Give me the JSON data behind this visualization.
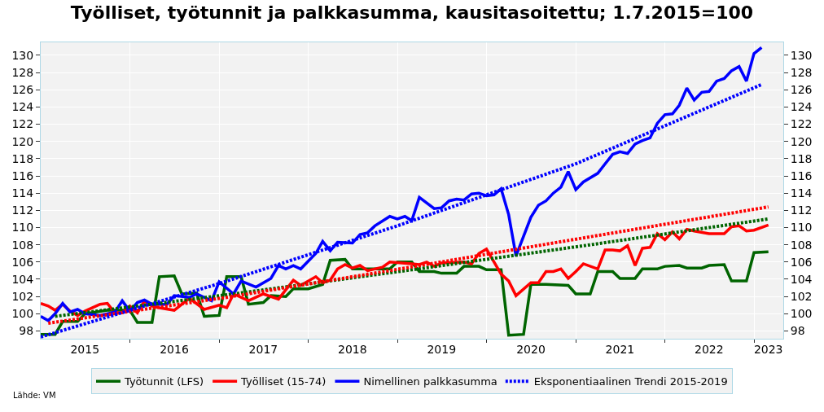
{
  "chart_data": {
    "type": "line",
    "title": "Työlliset, työtunnit ja palkkasumma, kausitasoitettu; 1.7.2015=100",
    "series": [
      {
        "name": "Työtunnit (LFS)",
        "color": "#006400",
        "line_style": "solid",
        "x": [
          "2015-01",
          "2015-03",
          "2015-04",
          "2015-06",
          "2015-07",
          "2015-10",
          "2016-01",
          "2016-02",
          "2016-04",
          "2016-05",
          "2016-07",
          "2016-08",
          "2016-10",
          "2016-11",
          "2017-01",
          "2017-02",
          "2017-04",
          "2017-05",
          "2017-07",
          "2017-08",
          "2017-10",
          "2017-11",
          "2018-01",
          "2018-03",
          "2018-04",
          "2018-06",
          "2018-07",
          "2018-12",
          "2019-01",
          "2019-03",
          "2019-04",
          "2019-06",
          "2019-07",
          "2019-09",
          "2019-10",
          "2019-12",
          "2020-01",
          "2020-03",
          "2020-04",
          "2020-06",
          "2020-07",
          "2020-09",
          "2020-12",
          "2021-01",
          "2021-03",
          "2021-04",
          "2021-06",
          "2021-07",
          "2021-09",
          "2021-10",
          "2021-12",
          "2022-01",
          "2022-03",
          "2022-04",
          "2022-06",
          "2022-07",
          "2022-09",
          "2022-10",
          "2022-12",
          "2023-01",
          "2023-03"
        ],
        "values": [
          97.6,
          97.6,
          99.1,
          99.1,
          100.0,
          100.4,
          100.4,
          99.0,
          99.0,
          104.3,
          104.4,
          102.3,
          102.4,
          99.7,
          99.8,
          104.3,
          104.3,
          101.1,
          101.3,
          102.1,
          102.0,
          102.9,
          102.9,
          103.4,
          106.2,
          106.3,
          105.2,
          105.2,
          106.0,
          106.0,
          104.9,
          104.9,
          104.7,
          104.7,
          105.5,
          105.5,
          105.1,
          105.1,
          97.5,
          97.6,
          103.4,
          103.4,
          103.3,
          102.3,
          102.3,
          104.9,
          104.9,
          104.1,
          104.1,
          105.2,
          105.2,
          105.5,
          105.6,
          105.3,
          105.3,
          105.6,
          105.7,
          103.8,
          103.8,
          107.1,
          107.2
        ]
      },
      {
        "name": "Työlliset (15-74)",
        "color": "#ff0000",
        "line_style": "solid",
        "x": [
          "2015-01",
          "2015-02",
          "2015-03",
          "2015-04",
          "2015-05",
          "2015-06",
          "2015-07",
          "2015-09",
          "2015-10",
          "2015-11",
          "2015-12",
          "2016-01",
          "2016-02",
          "2016-03",
          "2016-04",
          "2016-05",
          "2016-07",
          "2016-09",
          "2016-11",
          "2017-01",
          "2017-02",
          "2017-03",
          "2017-05",
          "2017-07",
          "2017-09",
          "2017-11",
          "2017-12",
          "2018-02",
          "2018-03",
          "2018-04",
          "2018-05",
          "2018-06",
          "2018-07",
          "2018-08",
          "2018-09",
          "2018-11",
          "2018-12",
          "2019-03",
          "2019-04",
          "2019-05",
          "2019-06",
          "2019-07",
          "2019-10",
          "2019-11",
          "2019-12",
          "2020-01",
          "2020-03",
          "2020-04",
          "2020-05",
          "2020-07",
          "2020-08",
          "2020-09",
          "2020-10",
          "2020-11",
          "2020-12",
          "2021-01",
          "2021-02",
          "2021-04",
          "2021-05",
          "2021-06",
          "2021-07",
          "2021-08",
          "2021-09",
          "2021-10",
          "2021-11",
          "2021-12",
          "2022-01",
          "2022-02",
          "2022-03",
          "2022-04",
          "2022-05",
          "2022-07",
          "2022-09",
          "2022-10",
          "2022-11",
          "2022-12",
          "2023-01",
          "2023-03"
        ],
        "values": [
          101.2,
          100.9,
          100.4,
          101.1,
          100.3,
          99.8,
          100.3,
          101.1,
          101.2,
          100.1,
          100.1,
          100.9,
          100.1,
          101.5,
          100.9,
          100.7,
          100.4,
          101.8,
          100.5,
          101.0,
          100.7,
          102.3,
          101.5,
          102.3,
          101.7,
          103.9,
          103.3,
          104.3,
          103.6,
          103.9,
          105.2,
          105.7,
          105.3,
          105.6,
          105.0,
          105.4,
          106.0,
          105.8,
          105.7,
          106.0,
          105.5,
          105.9,
          106.0,
          105.8,
          107.0,
          107.5,
          104.6,
          103.8,
          102.1,
          103.6,
          103.6,
          104.9,
          104.9,
          105.2,
          104.1,
          104.9,
          105.8,
          105.2,
          107.4,
          107.4,
          107.3,
          107.9,
          105.6,
          107.6,
          107.7,
          109.3,
          108.6,
          109.5,
          108.7,
          109.8,
          109.6,
          109.3,
          109.3,
          110.1,
          110.2,
          109.6,
          109.7,
          110.3
        ]
      },
      {
        "name": "Nimellinen palkkasumma",
        "color": "#0000ff",
        "line_style": "solid",
        "x": [
          "2015-01",
          "2015-02",
          "2015-03",
          "2015-04",
          "2015-05",
          "2015-06",
          "2015-07",
          "2015-09",
          "2015-11",
          "2015-12",
          "2016-01",
          "2016-02",
          "2016-03",
          "2016-04",
          "2016-06",
          "2016-07",
          "2016-09",
          "2016-10",
          "2016-12",
          "2017-01",
          "2017-03",
          "2017-04",
          "2017-06",
          "2017-08",
          "2017-09",
          "2017-10",
          "2017-11",
          "2017-12",
          "2018-02",
          "2018-03",
          "2018-04",
          "2018-05",
          "2018-07",
          "2018-08",
          "2018-09",
          "2018-10",
          "2018-12",
          "2019-01",
          "2019-02",
          "2019-03",
          "2019-04",
          "2019-06",
          "2019-07",
          "2019-08",
          "2019-09",
          "2019-10",
          "2019-11",
          "2019-12",
          "2020-01",
          "2020-02",
          "2020-03",
          "2020-04",
          "2020-05",
          "2020-07",
          "2020-08",
          "2020-09",
          "2020-10",
          "2020-11",
          "2020-12",
          "2021-01",
          "2021-02",
          "2021-04",
          "2021-05",
          "2021-06",
          "2021-07",
          "2021-08",
          "2021-09",
          "2021-10",
          "2021-11",
          "2021-12",
          "2022-01",
          "2022-02",
          "2022-03",
          "2022-04",
          "2022-05",
          "2022-06",
          "2022-07",
          "2022-08",
          "2022-09",
          "2022-10",
          "2022-11",
          "2022-12",
          "2023-01",
          "2023-02"
        ],
        "values": [
          99.7,
          99.2,
          100.0,
          101.2,
          100.2,
          100.5,
          100.0,
          99.8,
          100.2,
          101.5,
          100.3,
          101.3,
          101.6,
          101.1,
          101.1,
          102.1,
          101.9,
          102.3,
          101.5,
          103.7,
          102.3,
          103.8,
          103.1,
          104.1,
          105.6,
          105.2,
          105.6,
          105.2,
          107.0,
          108.4,
          107.3,
          108.3,
          108.2,
          109.2,
          109.4,
          110.2,
          111.3,
          111.0,
          111.3,
          110.8,
          113.5,
          112.2,
          112.3,
          113.1,
          113.3,
          113.2,
          113.9,
          114.0,
          113.7,
          113.8,
          114.5,
          111.5,
          106.7,
          111.2,
          112.6,
          113.1,
          114.0,
          114.7,
          116.5,
          114.4,
          115.3,
          116.3,
          117.4,
          118.5,
          118.8,
          118.6,
          119.7,
          120.1,
          120.4,
          122.1,
          123.1,
          123.2,
          124.2,
          126.2,
          124.8,
          125.7,
          125.8,
          127.0,
          127.3,
          128.2,
          128.7,
          127.0,
          130.2,
          130.9
        ]
      },
      {
        "color": "#006400",
        "line_style": "dotted",
        "x": [
          "2015-03",
          "2017-03",
          "2019-03",
          "2021-03",
          "2023-03"
        ],
        "values": [
          99.7,
          102.3,
          105.1,
          108.0,
          111.0
        ]
      },
      {
        "color": "#ff0000",
        "line_style": "dotted",
        "x": [
          "2015-02",
          "2017-02",
          "2019-02",
          "2021-02",
          "2023-03"
        ],
        "values": [
          98.9,
          101.9,
          105.3,
          108.8,
          112.4
        ]
      },
      {
        "name": "Eksponentiaalinen Trendi 2015-2019",
        "color": "#0000ff",
        "line_style": "dotted",
        "x": [
          "2015-01",
          "2017-01",
          "2019-01",
          "2021-01",
          "2023-02"
        ],
        "values": [
          97.3,
          103.5,
          110.2,
          117.4,
          126.6
        ]
      }
    ],
    "xlim": [
      "2015-01-01",
      "2023-05-01"
    ],
    "xticks": [
      {
        "value": "2015-07-01",
        "label": "2015"
      },
      {
        "value": "2016-01-01",
        "label": null
      },
      {
        "value": "2016-07-01",
        "label": "2016"
      },
      {
        "value": "2017-01-01",
        "label": null
      },
      {
        "value": "2017-07-01",
        "label": "2017"
      },
      {
        "value": "2018-01-01",
        "label": null
      },
      {
        "value": "2018-07-01",
        "label": "2018"
      },
      {
        "value": "2019-01-01",
        "label": null
      },
      {
        "value": "2019-07-01",
        "label": "2019"
      },
      {
        "value": "2020-01-01",
        "label": null
      },
      {
        "value": "2020-07-01",
        "label": "2020"
      },
      {
        "value": "2021-01-01",
        "label": null
      },
      {
        "value": "2021-07-01",
        "label": "2021"
      },
      {
        "value": "2022-01-01",
        "label": null
      },
      {
        "value": "2022-07-01",
        "label": "2022"
      },
      {
        "value": "2023-01-01",
        "label": null
      },
      {
        "value": "2023-03-01",
        "label": "2023"
      }
    ],
    "ylim": [
      97.1,
      131.5
    ],
    "yticks": [
      98,
      100,
      102,
      104,
      106,
      108,
      110,
      112,
      114,
      116,
      118,
      120,
      122,
      124,
      126,
      128,
      130
    ],
    "y2lim": [
      97.1,
      131.5
    ],
    "y2ticks": [
      98,
      100,
      102,
      104,
      106,
      108,
      110,
      112,
      114,
      116,
      118,
      120,
      122,
      124,
      126,
      128,
      130
    ],
    "grid": true,
    "legend": "bottom",
    "marker": "none",
    "annotations": [
      "Lähde: VM"
    ]
  }
}
